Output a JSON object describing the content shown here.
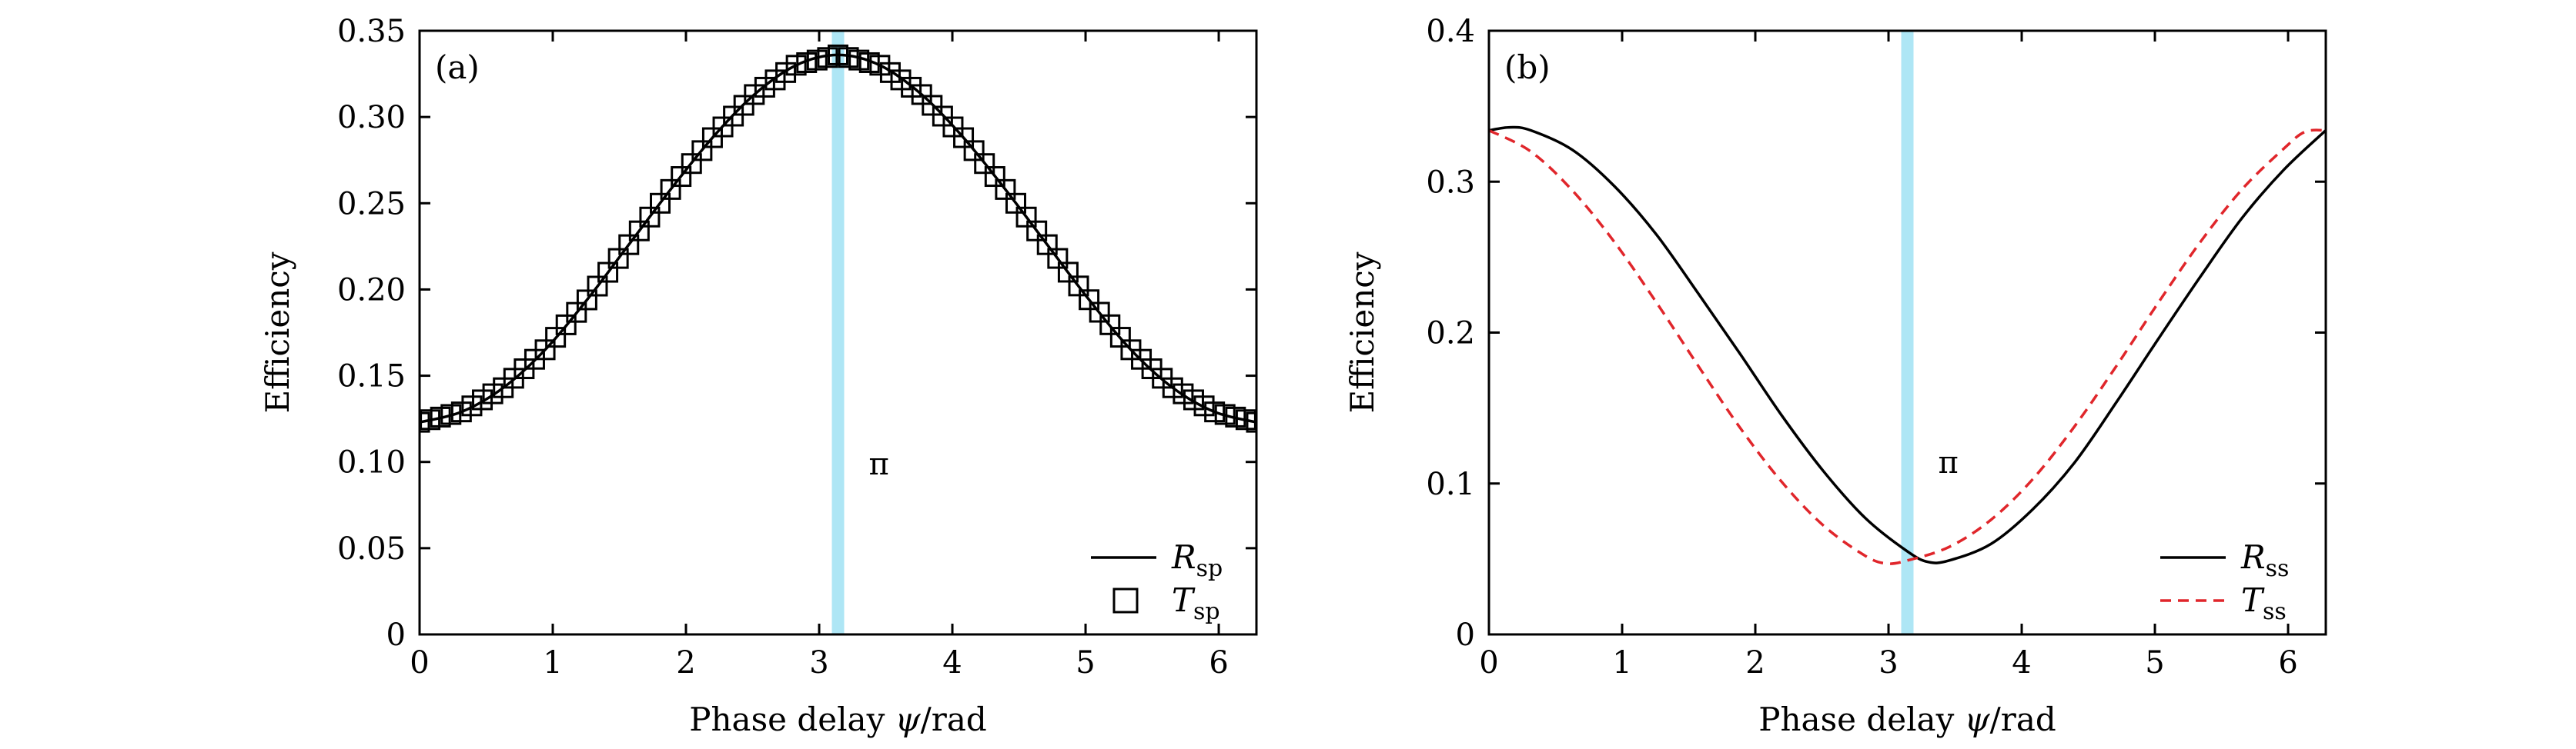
{
  "chart_data": [
    {
      "panel_label": "(a)",
      "type": "line",
      "xlabel": {
        "pre": "Phase delay ",
        "var": "ψ",
        "post": "/rad"
      },
      "ylabel": "Efficiency",
      "xlim": [
        0,
        6.283
      ],
      "ylim": [
        0,
        0.35
      ],
      "xticks": [
        0,
        1,
        2,
        3,
        4,
        5,
        6
      ],
      "yticks": [
        0,
        0.05,
        0.1,
        0.15,
        0.2,
        0.25,
        0.3,
        0.35
      ],
      "ytick_labels": [
        "0",
        "0.05",
        "0.10",
        "0.15",
        "0.20",
        "0.25",
        "0.30",
        "0.35"
      ],
      "marker_line": {
        "x": 3.1416,
        "label": "π",
        "label_y": 0.098,
        "color": "#aee6f5"
      },
      "legend_position": "bottom-right",
      "series": [
        {
          "name": "R",
          "sub": "sp",
          "style": "solid",
          "color": "#000000",
          "x": [
            0,
            0.314,
            0.628,
            0.942,
            1.257,
            1.571,
            1.885,
            2.199,
            2.513,
            2.827,
            3.142,
            3.456,
            3.77,
            4.084,
            4.398,
            4.712,
            5.027,
            5.341,
            5.655,
            5.969,
            6.283
          ],
          "y": [
            0.123,
            0.129,
            0.143,
            0.165,
            0.194,
            0.226,
            0.258,
            0.288,
            0.313,
            0.33,
            0.336,
            0.33,
            0.313,
            0.288,
            0.258,
            0.226,
            0.194,
            0.165,
            0.143,
            0.129,
            0.123
          ]
        },
        {
          "name": "T",
          "sub": "sp",
          "style": "square-markers",
          "color": "#000000",
          "x": [
            0,
            0.314,
            0.628,
            0.942,
            1.257,
            1.571,
            1.885,
            2.199,
            2.513,
            2.827,
            3.142,
            3.456,
            3.77,
            4.084,
            4.398,
            4.712,
            5.027,
            5.341,
            5.655,
            5.969,
            6.283
          ],
          "y": [
            0.123,
            0.129,
            0.143,
            0.165,
            0.194,
            0.226,
            0.258,
            0.288,
            0.313,
            0.33,
            0.336,
            0.33,
            0.313,
            0.288,
            0.258,
            0.226,
            0.194,
            0.165,
            0.143,
            0.129,
            0.123
          ]
        }
      ]
    },
    {
      "panel_label": "(b)",
      "type": "line",
      "xlabel": {
        "pre": "Phase delay ",
        "var": "ψ",
        "post": "/rad"
      },
      "ylabel": "Efficiency",
      "xlim": [
        0,
        6.283
      ],
      "ylim": [
        0,
        0.4
      ],
      "xticks": [
        0,
        1,
        2,
        3,
        4,
        5,
        6
      ],
      "yticks": [
        0,
        0.1,
        0.2,
        0.3,
        0.4
      ],
      "ytick_labels": [
        "0",
        "0.1",
        "0.2",
        "0.3",
        "0.4"
      ],
      "marker_line": {
        "x": 3.1416,
        "label": "π",
        "label_y": 0.113,
        "color": "#aee6f5"
      },
      "legend_position": "bottom-right",
      "series": [
        {
          "name": "R",
          "sub": "ss",
          "style": "solid",
          "color": "#000000",
          "x": [
            0,
            0.1571,
            0.314,
            0.628,
            0.942,
            1.257,
            1.571,
            1.885,
            2.199,
            2.513,
            2.827,
            3.142,
            3.299,
            3.456,
            3.77,
            4.084,
            4.398,
            4.712,
            5.027,
            5.341,
            5.655,
            5.969,
            6.283
          ],
          "y": [
            0.334,
            0.336,
            0.334,
            0.321,
            0.297,
            0.265,
            0.226,
            0.186,
            0.145,
            0.108,
            0.077,
            0.055,
            0.048,
            0.049,
            0.06,
            0.083,
            0.114,
            0.154,
            0.196,
            0.237,
            0.276,
            0.308,
            0.334
          ]
        },
        {
          "name": "T",
          "sub": "ss",
          "style": "dashed",
          "color": "#e0262b",
          "x": [
            0,
            0.314,
            0.628,
            0.942,
            1.257,
            1.571,
            1.885,
            2.199,
            2.513,
            2.827,
            2.985,
            3.142,
            3.456,
            3.77,
            4.084,
            4.398,
            4.712,
            5.027,
            5.341,
            5.655,
            5.969,
            6.126,
            6.283
          ],
          "y": [
            0.334,
            0.32,
            0.294,
            0.26,
            0.22,
            0.178,
            0.137,
            0.101,
            0.072,
            0.052,
            0.047,
            0.049,
            0.058,
            0.076,
            0.103,
            0.138,
            0.178,
            0.22,
            0.26,
            0.295,
            0.322,
            0.333,
            0.334
          ]
        }
      ]
    }
  ]
}
